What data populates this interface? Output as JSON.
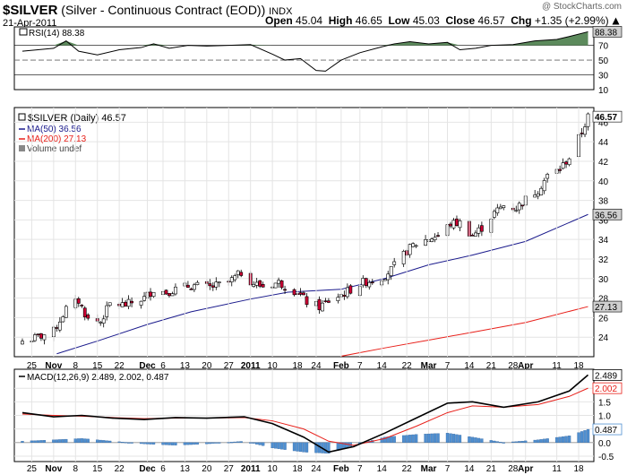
{
  "header": {
    "symbol": "$SILVER",
    "description": "(Silver - Continuous Contract (EOD))",
    "exchange": "INDX",
    "date": "21-Apr-2011",
    "watermark": "@ StockCharts.com",
    "open_label": "Open",
    "open": "45.04",
    "high_label": "High",
    "high": "46.65",
    "low_label": "Low",
    "low": "45.03",
    "close_label": "Close",
    "close": "46.57",
    "chg_label": "Chg",
    "chg": "+1.35 (+2.99%)",
    "chg_icon": "triangle-up-icon"
  },
  "colors": {
    "up_candle": "#ffffff",
    "down_candle": "#cc0033",
    "flat_candle": "#000000",
    "ma50": "#1a1a8c",
    "ma200": "#e8201a",
    "rsi_fill": "#5c8a5c",
    "macd_line": "#000000",
    "signal_line": "#e8201a",
    "histogram": "#4f8fd0",
    "label_box": "#cfcfcf"
  },
  "chart_data": [
    {
      "panel": "rsi",
      "type": "line",
      "title": "RSI(14) 88.38",
      "last_value_label": "88.38",
      "ylim": [
        10,
        95
      ],
      "y_ticks": [
        "70",
        "50",
        "30",
        "10"
      ],
      "overbought": 70,
      "oversold": 30,
      "x": [
        "2010-10-22",
        "2010-11-01",
        "2010-11-05",
        "2010-11-09",
        "2010-11-15",
        "2010-11-22",
        "2010-11-29",
        "2010-12-03",
        "2010-12-08",
        "2010-12-14",
        "2010-12-20",
        "2010-12-27",
        "2011-01-03",
        "2011-01-10",
        "2011-01-14",
        "2011-01-19",
        "2011-01-24",
        "2011-01-27",
        "2011-02-01",
        "2011-02-07",
        "2011-02-14",
        "2011-02-18",
        "2011-02-23",
        "2011-03-01",
        "2011-03-07",
        "2011-03-11",
        "2011-03-16",
        "2011-03-21",
        "2011-03-28",
        "2011-04-04",
        "2011-04-11",
        "2011-04-15",
        "2011-04-21"
      ],
      "y": [
        62,
        66,
        76,
        62,
        57,
        64,
        67,
        72,
        66,
        70,
        69,
        70,
        71,
        58,
        50,
        52,
        36,
        35,
        50,
        60,
        68,
        72,
        75,
        72,
        74,
        64,
        66,
        70,
        71,
        76,
        78,
        82,
        88.38
      ]
    },
    {
      "panel": "price",
      "type": "candlestick",
      "legend": [
        {
          "name": "$SILVER (Daily) 46.57",
          "icon": "candlestick-icon"
        },
        {
          "name": "MA(50) 36.56",
          "color": "#1a1a8c"
        },
        {
          "name": "MA(200) 27.13",
          "color": "#e8201a"
        },
        {
          "name": "Volume undef",
          "icon": "volume-bars-icon"
        }
      ],
      "ylim": [
        22,
        47.5
      ],
      "y_ticks": [
        "46",
        "44",
        "42",
        "40",
        "38",
        "36",
        "34",
        "32",
        "30",
        "28",
        "26",
        "24"
      ],
      "last_labels": [
        "46.57",
        "36.56",
        "27.13"
      ],
      "x_ticks": [
        "25",
        "Nov",
        "8",
        "15",
        "22",
        "Dec",
        "6",
        "13",
        "20",
        "27",
        "2011",
        "10",
        "18",
        "24",
        "Feb",
        "7",
        "14",
        "22",
        "Mar",
        "7",
        "14",
        "21",
        "28",
        "Apr",
        "11",
        "18"
      ],
      "close_path": {
        "x": [
          "2010-10-22",
          "2010-10-26",
          "2010-11-01",
          "2010-11-05",
          "2010-11-09",
          "2010-11-12",
          "2010-11-16",
          "2010-11-19",
          "2010-11-24",
          "2010-11-30",
          "2010-12-03",
          "2010-12-07",
          "2010-12-10",
          "2010-12-15",
          "2010-12-21",
          "2010-12-27",
          "2010-12-31",
          "2011-01-04",
          "2011-01-07",
          "2011-01-12",
          "2011-01-18",
          "2011-01-21",
          "2011-01-25",
          "2011-01-28",
          "2011-02-02",
          "2011-02-08",
          "2011-02-14",
          "2011-02-17",
          "2011-02-22",
          "2011-02-24",
          "2011-03-01",
          "2011-03-04",
          "2011-03-08",
          "2011-03-11",
          "2011-03-15",
          "2011-03-18",
          "2011-03-22",
          "2011-03-25",
          "2011-03-29",
          "2011-04-01",
          "2011-04-05",
          "2011-04-08",
          "2011-04-12",
          "2011-04-15",
          "2011-04-19",
          "2011-04-21"
        ],
        "y": [
          23.6,
          23.9,
          24.6,
          26.9,
          27.7,
          25.8,
          25.6,
          27.4,
          27.3,
          28.0,
          28.9,
          28.6,
          28.9,
          29.3,
          29.1,
          29.6,
          30.6,
          29.5,
          29.2,
          29.6,
          28.6,
          27.6,
          27.1,
          27.7,
          28.5,
          29.6,
          30.1,
          30.9,
          32.8,
          33.4,
          34.1,
          34.4,
          35.6,
          35.7,
          34.4,
          35.2,
          36.7,
          37.5,
          37.2,
          38.1,
          39.1,
          40.5,
          41.2,
          42.4,
          45.0,
          46.57
        ]
      },
      "ma50": {
        "x": [
          "2010-11-02",
          "2010-11-15",
          "2010-12-01",
          "2010-12-15",
          "2011-01-03",
          "2011-01-15",
          "2011-02-01",
          "2011-02-15",
          "2011-03-01",
          "2011-03-15",
          "2011-04-01",
          "2011-04-21"
        ],
        "y": [
          22.3,
          23.6,
          25.3,
          26.6,
          27.9,
          28.6,
          28.9,
          30.0,
          31.4,
          32.4,
          33.8,
          36.56
        ]
      },
      "ma200": {
        "x": [
          "2011-02-01",
          "2011-02-15",
          "2011-03-01",
          "2011-03-15",
          "2011-04-01",
          "2011-04-21"
        ],
        "y": [
          22.05,
          22.9,
          23.7,
          24.5,
          25.5,
          27.13
        ]
      }
    },
    {
      "panel": "macd",
      "type": "line",
      "title": "MACD(12,26,9) 2.489, 2.002, 0.487",
      "last_value_labels": [
        "2.489",
        "2.002",
        "0.487"
      ],
      "ylim": [
        -0.7,
        2.7
      ],
      "y_ticks": [
        "2.0",
        "1.5",
        "1.0",
        "0.5",
        "0.0",
        "-0.5"
      ],
      "series": [
        {
          "name": "2.489",
          "x": [
            "2010-10-22",
            "2010-11-01",
            "2010-11-10",
            "2010-11-20",
            "2010-11-30",
            "2010-12-10",
            "2010-12-20",
            "2011-01-01",
            "2011-01-10",
            "2011-01-20",
            "2011-01-28",
            "2011-02-05",
            "2011-02-15",
            "2011-02-25",
            "2011-03-07",
            "2011-03-15",
            "2011-03-25",
            "2011-04-05",
            "2011-04-15",
            "2011-04-21"
          ],
          "y": [
            1.1,
            0.95,
            1.0,
            0.9,
            0.85,
            0.92,
            0.9,
            0.95,
            0.7,
            0.2,
            -0.35,
            -0.15,
            0.35,
            0.9,
            1.45,
            1.5,
            1.3,
            1.5,
            1.9,
            2.489
          ]
        },
        {
          "name": "2.002",
          "x": [
            "2010-10-22",
            "2010-11-01",
            "2010-11-10",
            "2010-11-20",
            "2010-11-30",
            "2010-12-10",
            "2010-12-20",
            "2011-01-01",
            "2011-01-10",
            "2011-01-20",
            "2011-01-28",
            "2011-02-05",
            "2011-02-15",
            "2011-02-25",
            "2011-03-07",
            "2011-03-15",
            "2011-03-25",
            "2011-04-05",
            "2011-04-15",
            "2011-04-21"
          ],
          "y": [
            1.05,
            1.0,
            0.97,
            0.92,
            0.88,
            0.9,
            0.9,
            0.92,
            0.8,
            0.5,
            0.05,
            -0.1,
            0.15,
            0.6,
            1.1,
            1.35,
            1.3,
            1.4,
            1.7,
            2.002
          ]
        }
      ],
      "histogram": {
        "x": [
          "2010-10-22",
          "2010-11-01",
          "2010-11-10",
          "2010-11-20",
          "2010-11-30",
          "2010-12-10",
          "2010-12-20",
          "2011-01-01",
          "2011-01-10",
          "2011-01-20",
          "2011-01-28",
          "2011-02-05",
          "2011-02-15",
          "2011-02-25",
          "2011-03-07",
          "2011-03-15",
          "2011-03-25",
          "2011-04-05",
          "2011-04-15",
          "2011-04-21"
        ],
        "y": [
          0.05,
          0.1,
          0.15,
          0.05,
          -0.05,
          -0.1,
          -0.05,
          0.05,
          -0.2,
          -0.35,
          -0.4,
          -0.1,
          0.2,
          0.3,
          0.35,
          0.2,
          0.0,
          0.1,
          0.25,
          0.487
        ]
      },
      "x_ticks": [
        "25",
        "Nov",
        "8",
        "15",
        "22",
        "Dec",
        "6",
        "13",
        "20",
        "27",
        "2011",
        "10",
        "18",
        "24",
        "Feb",
        "7",
        "14",
        "22",
        "Mar",
        "7",
        "14",
        "21",
        "28",
        "Apr",
        "11",
        "18"
      ]
    }
  ]
}
